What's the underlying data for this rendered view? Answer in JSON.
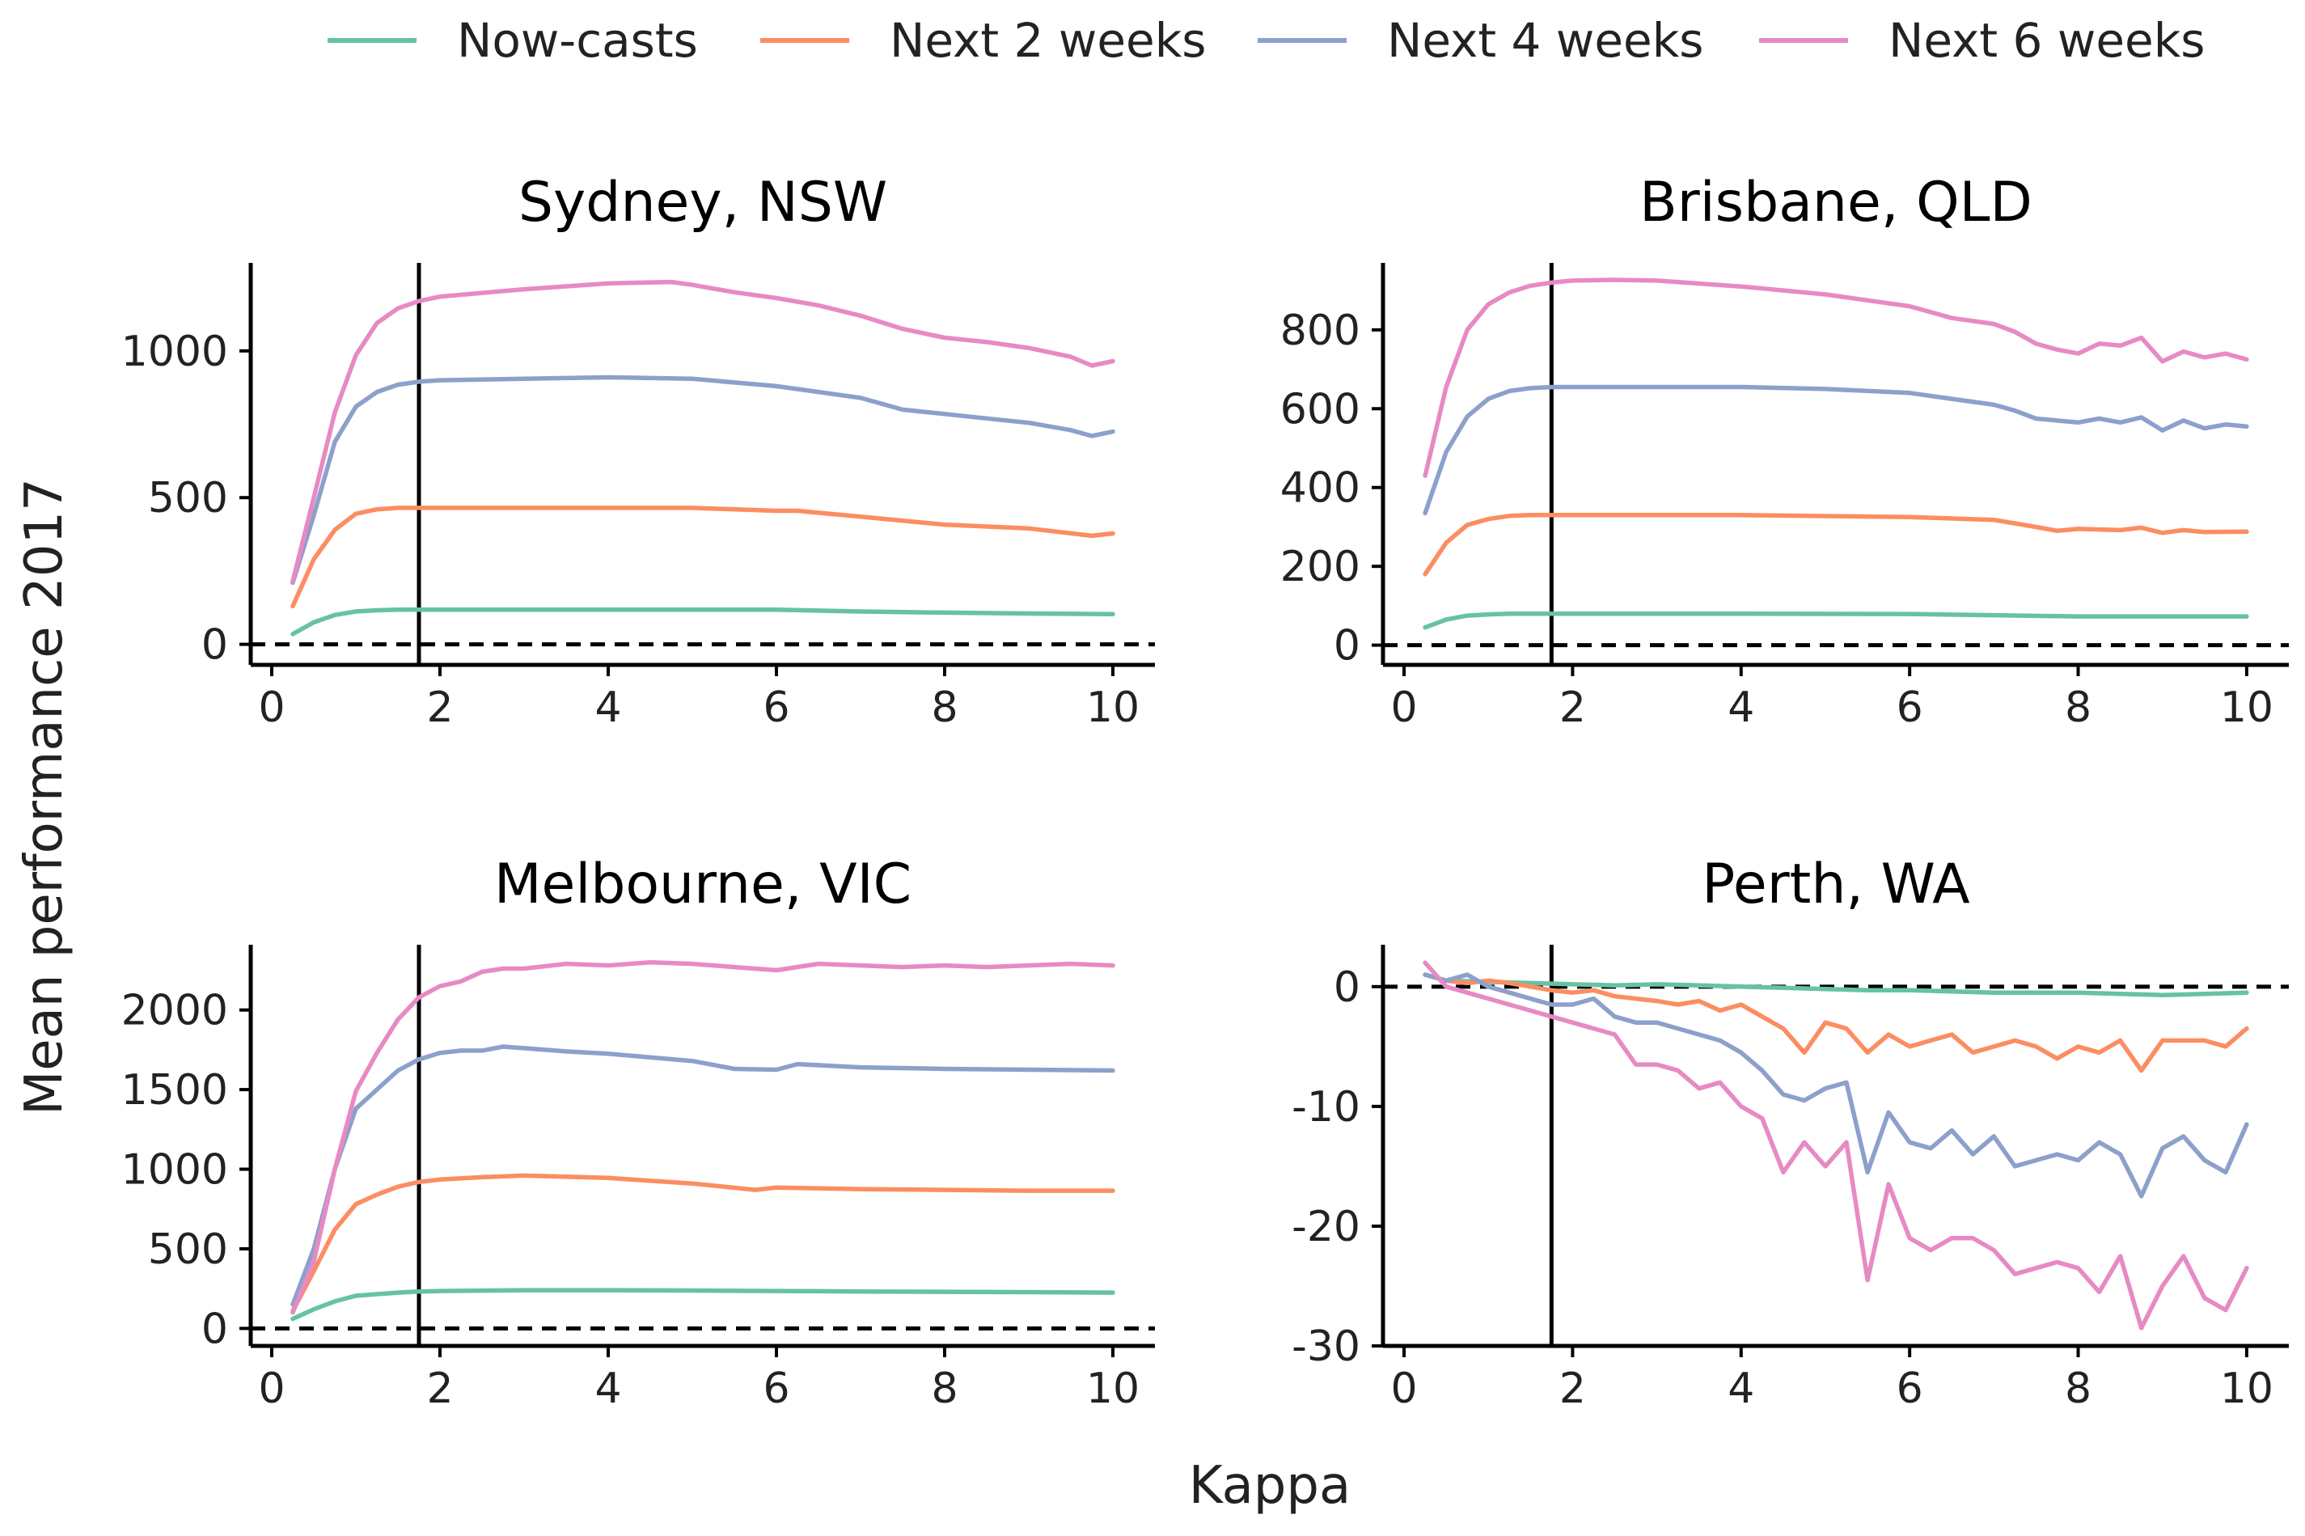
{
  "legend": [
    {
      "key": "now",
      "label": "Now-casts",
      "color": "#66c2a5"
    },
    {
      "key": "w2",
      "label": "Next 2 weeks",
      "color": "#fc8d62"
    },
    {
      "key": "w4",
      "label": "Next 4 weeks",
      "color": "#8da0cb"
    },
    {
      "key": "w6",
      "label": "Next 6 weeks",
      "color": "#e78ac3"
    }
  ],
  "xlabel": "Kappa",
  "ylabel": "Mean performance 2017",
  "chart_data": [
    {
      "type": "line",
      "title": "Sydney, NSW",
      "xlim": [
        -0.25,
        10.5
      ],
      "ylim": [
        -70,
        1300
      ],
      "xticks": [
        0,
        2,
        4,
        6,
        8,
        10
      ],
      "yticks": [
        0,
        500,
        1000
      ],
      "vline": 1.75,
      "hline": 0,
      "series": [
        {
          "key": "now",
          "name": "Now-casts",
          "x": [
            0.25,
            0.5,
            0.75,
            1,
            1.25,
            1.5,
            1.75,
            2,
            3,
            4,
            5,
            6,
            7,
            8,
            9,
            10
          ],
          "y": [
            35,
            75,
            100,
            112,
            116,
            118,
            118,
            118,
            118,
            118,
            118,
            118,
            112,
            108,
            105,
            103
          ]
        },
        {
          "key": "w2",
          "name": "Next 2 weeks",
          "x": [
            0.25,
            0.5,
            0.75,
            1,
            1.25,
            1.5,
            1.75,
            2,
            3,
            4,
            5,
            6,
            6.25,
            7,
            8,
            9,
            9.75,
            10
          ],
          "y": [
            130,
            290,
            390,
            445,
            460,
            465,
            465,
            465,
            465,
            465,
            465,
            455,
            455,
            435,
            408,
            395,
            370,
            378
          ]
        },
        {
          "key": "w4",
          "name": "Next 4 weeks",
          "x": [
            0.25,
            0.5,
            0.75,
            1,
            1.25,
            1.5,
            1.75,
            2,
            3,
            4,
            5,
            6,
            6.25,
            7,
            7.5,
            8,
            8.5,
            9,
            9.5,
            9.75,
            10
          ],
          "y": [
            210,
            440,
            690,
            810,
            860,
            885,
            895,
            900,
            905,
            910,
            905,
            880,
            870,
            840,
            800,
            785,
            770,
            755,
            730,
            710,
            725
          ]
        },
        {
          "key": "w6",
          "name": "Next 6 weeks",
          "x": [
            0.25,
            0.5,
            0.75,
            1,
            1.25,
            1.5,
            1.75,
            2,
            3,
            4,
            4.75,
            5,
            5.5,
            6,
            6.5,
            7,
            7.5,
            8,
            8.5,
            9,
            9.5,
            9.75,
            10
          ],
          "y": [
            215,
            500,
            790,
            985,
            1095,
            1145,
            1170,
            1185,
            1210,
            1230,
            1235,
            1225,
            1200,
            1180,
            1155,
            1120,
            1075,
            1045,
            1030,
            1010,
            980,
            950,
            965
          ]
        }
      ]
    },
    {
      "type": "line",
      "title": "Brisbane, QLD",
      "xlim": [
        -0.25,
        10.5
      ],
      "ylim": [
        -50,
        970
      ],
      "xticks": [
        0,
        2,
        4,
        6,
        8,
        10
      ],
      "yticks": [
        0,
        200,
        400,
        600,
        800
      ],
      "vline": 1.75,
      "hline": 0,
      "series": [
        {
          "key": "now",
          "name": "Now-casts",
          "x": [
            0.25,
            0.5,
            0.75,
            1,
            1.25,
            1.5,
            1.75,
            2,
            4,
            6,
            7,
            8,
            9,
            10
          ],
          "y": [
            45,
            65,
            75,
            78,
            80,
            80,
            80,
            80,
            80,
            79,
            76,
            73,
            73,
            73
          ]
        },
        {
          "key": "w2",
          "name": "Next 2 weeks",
          "x": [
            0.25,
            0.5,
            0.75,
            1,
            1.25,
            1.5,
            1.75,
            2,
            4,
            6,
            7,
            7.5,
            7.75,
            8,
            8.5,
            8.75,
            9,
            9.25,
            9.5,
            10
          ],
          "y": [
            180,
            260,
            305,
            320,
            328,
            330,
            330,
            330,
            330,
            325,
            318,
            300,
            290,
            295,
            292,
            298,
            285,
            292,
            287,
            288
          ]
        },
        {
          "key": "w4",
          "name": "Next 4 weeks",
          "x": [
            0.25,
            0.5,
            0.75,
            1,
            1.25,
            1.5,
            1.75,
            2,
            4,
            5,
            6,
            6.5,
            7,
            7.25,
            7.5,
            8,
            8.25,
            8.5,
            8.75,
            9,
            9.25,
            9.5,
            9.75,
            10
          ],
          "y": [
            335,
            490,
            580,
            625,
            645,
            652,
            655,
            655,
            655,
            650,
            640,
            625,
            610,
            595,
            575,
            565,
            575,
            565,
            578,
            545,
            570,
            550,
            560,
            555
          ]
        },
        {
          "key": "w6",
          "name": "Next 6 weeks",
          "x": [
            0.25,
            0.5,
            0.75,
            1,
            1.25,
            1.5,
            1.75,
            2,
            2.5,
            3,
            4,
            5,
            5.5,
            6,
            6.5,
            7,
            7.25,
            7.5,
            7.75,
            8,
            8.25,
            8.5,
            8.75,
            9,
            9.25,
            9.5,
            9.75,
            10
          ],
          "y": [
            430,
            655,
            800,
            865,
            895,
            912,
            920,
            925,
            927,
            925,
            910,
            890,
            875,
            860,
            830,
            815,
            795,
            765,
            750,
            740,
            765,
            760,
            780,
            720,
            745,
            730,
            740,
            725
          ]
        }
      ]
    },
    {
      "type": "line",
      "title": "Melbourne, VIC",
      "xlim": [
        -0.25,
        10.5
      ],
      "ylim": [
        -110,
        2410
      ],
      "xticks": [
        0,
        2,
        4,
        6,
        8,
        10
      ],
      "yticks": [
        0,
        500,
        1000,
        1500,
        2000
      ],
      "vline": 1.75,
      "hline": 0,
      "series": [
        {
          "key": "now",
          "name": "Now-casts",
          "x": [
            0.25,
            0.5,
            0.75,
            1,
            1.25,
            1.5,
            1.75,
            2,
            3,
            4,
            5,
            6,
            7,
            8,
            9,
            10
          ],
          "y": [
            60,
            120,
            170,
            205,
            215,
            225,
            232,
            235,
            240,
            240,
            238,
            235,
            232,
            230,
            228,
            225
          ]
        },
        {
          "key": "w2",
          "name": "Next 2 weeks",
          "x": [
            0.25,
            0.5,
            0.75,
            1,
            1.25,
            1.5,
            1.75,
            2,
            2.5,
            3,
            4,
            5,
            5.75,
            6,
            7,
            8,
            9,
            10
          ],
          "y": [
            110,
            360,
            620,
            780,
            840,
            890,
            920,
            935,
            950,
            960,
            945,
            910,
            870,
            885,
            875,
            870,
            865,
            865
          ]
        },
        {
          "key": "w4",
          "name": "Next 4 weeks",
          "x": [
            0.25,
            0.5,
            0.75,
            1,
            1.25,
            1.5,
            1.75,
            2,
            2.25,
            2.5,
            2.75,
            3,
            3.5,
            4,
            5,
            5.5,
            6,
            6.25,
            7,
            8,
            9,
            10
          ],
          "y": [
            150,
            500,
            1000,
            1380,
            1500,
            1620,
            1690,
            1730,
            1745,
            1745,
            1770,
            1760,
            1740,
            1725,
            1680,
            1630,
            1625,
            1660,
            1640,
            1630,
            1625,
            1620
          ]
        },
        {
          "key": "w6",
          "name": "Next 6 weeks",
          "x": [
            0.25,
            0.5,
            0.75,
            1,
            1.25,
            1.5,
            1.75,
            2,
            2.25,
            2.5,
            2.75,
            3,
            3.5,
            4,
            4.5,
            5,
            5.5,
            6,
            6.5,
            7,
            7.5,
            8,
            8.5,
            9,
            9.5,
            10
          ],
          "y": [
            100,
            420,
            1000,
            1490,
            1730,
            1940,
            2080,
            2150,
            2180,
            2240,
            2260,
            2260,
            2290,
            2280,
            2300,
            2290,
            2270,
            2250,
            2290,
            2280,
            2270,
            2280,
            2270,
            2280,
            2290,
            2280
          ]
        }
      ]
    },
    {
      "type": "line",
      "title": "Perth, WA",
      "xlim": [
        -0.25,
        10.5
      ],
      "ylim": [
        -30,
        3.5
      ],
      "xticks": [
        0,
        2,
        4,
        6,
        8,
        10
      ],
      "yticks": [
        -30,
        -20,
        -10,
        0
      ],
      "vline": 1.75,
      "hline": 0,
      "series": [
        {
          "key": "now",
          "name": "Now-casts",
          "x": [
            0.25,
            0.5,
            1,
            1.5,
            2,
            2.5,
            3,
            3.5,
            4,
            4.5,
            5,
            5.5,
            6,
            6.5,
            7,
            7.5,
            8,
            8.5,
            9,
            9.5,
            10
          ],
          "y": [
            1,
            0.5,
            0.4,
            0.3,
            0.2,
            0.1,
            0.2,
            0.1,
            0,
            -0.1,
            -0.2,
            -0.3,
            -0.3,
            -0.4,
            -0.5,
            -0.5,
            -0.5,
            -0.6,
            -0.7,
            -0.6,
            -0.5
          ]
        },
        {
          "key": "w2",
          "name": "Next 2 weeks",
          "x": [
            0.25,
            0.5,
            0.75,
            1,
            1.25,
            1.5,
            1.75,
            2,
            2.25,
            2.5,
            2.75,
            3,
            3.25,
            3.5,
            3.75,
            4,
            4.25,
            4.5,
            4.75,
            5,
            5.25,
            5.5,
            5.75,
            6,
            6.25,
            6.5,
            6.75,
            7,
            7.25,
            7.5,
            7.75,
            8,
            8.25,
            8.5,
            8.75,
            9,
            9.25,
            9.5,
            9.75,
            10
          ],
          "y": [
            1,
            0.5,
            0.3,
            0.5,
            0.3,
            0,
            -0.3,
            -0.5,
            -0.3,
            -0.8,
            -1,
            -1.2,
            -1.5,
            -1.2,
            -2,
            -1.5,
            -2.5,
            -3.5,
            -5.5,
            -3,
            -3.5,
            -5.5,
            -4,
            -5,
            -4.5,
            -4,
            -5.5,
            -5,
            -4.5,
            -5,
            -6,
            -5,
            -5.5,
            -4.5,
            -7,
            -4.5,
            -4.5,
            -4.5,
            -5,
            -3.5
          ]
        },
        {
          "key": "w4",
          "name": "Next 4 weeks",
          "x": [
            0.25,
            0.5,
            0.75,
            1,
            1.25,
            1.5,
            1.75,
            2,
            2.25,
            2.5,
            2.75,
            3,
            3.25,
            3.5,
            3.75,
            4,
            4.25,
            4.5,
            4.75,
            5,
            5.25,
            5.5,
            5.75,
            6,
            6.25,
            6.5,
            6.75,
            7,
            7.25,
            7.5,
            7.75,
            8,
            8.25,
            8.5,
            8.75,
            9,
            9.25,
            9.5,
            9.75,
            10
          ],
          "y": [
            1,
            0.5,
            1,
            0,
            -0.5,
            -1,
            -1.5,
            -1.5,
            -1,
            -2.5,
            -3,
            -3,
            -3.5,
            -4,
            -4.5,
            -5.5,
            -7,
            -9,
            -9.5,
            -8.5,
            -8,
            -15.5,
            -10.5,
            -13,
            -13.5,
            -12,
            -14,
            -12.5,
            -15,
            -14.5,
            -14,
            -14.5,
            -13,
            -14,
            -17.5,
            -13.5,
            -12.5,
            -14.5,
            -15.5,
            -11.5
          ]
        },
        {
          "key": "w6",
          "name": "Next 6 weeks",
          "x": [
            0.25,
            0.5,
            0.75,
            1,
            1.25,
            1.5,
            1.75,
            2,
            2.25,
            2.5,
            2.75,
            3,
            3.25,
            3.5,
            3.75,
            4,
            4.25,
            4.5,
            4.75,
            5,
            5.25,
            5.5,
            5.75,
            6,
            6.25,
            6.5,
            6.75,
            7,
            7.25,
            7.5,
            7.75,
            8,
            8.25,
            8.5,
            8.75,
            9,
            9.25,
            9.5,
            9.75,
            10
          ],
          "y": [
            2,
            0,
            -0.5,
            -1,
            -1.5,
            -2,
            -2.5,
            -3,
            -3.5,
            -4,
            -6.5,
            -6.5,
            -7,
            -8.5,
            -8,
            -10,
            -11,
            -15.5,
            -13,
            -15,
            -13,
            -24.5,
            -16.5,
            -21,
            -22,
            -21,
            -21,
            -22,
            -24,
            -23.5,
            -23,
            -23.5,
            -25.5,
            -22.5,
            -28.5,
            -25,
            -22.5,
            -26,
            -27,
            -23.5
          ]
        }
      ]
    }
  ]
}
